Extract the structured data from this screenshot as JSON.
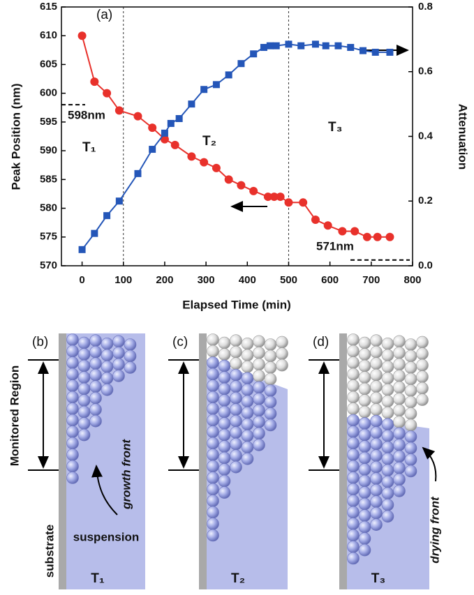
{
  "chart_data": {
    "type": "line",
    "xlabel": "Elapsed Time (min)",
    "ylabel": "Peak Position (nm)",
    "y2label": "Attenuation",
    "xlim": [
      -50,
      800
    ],
    "xticks": [
      0,
      100,
      200,
      300,
      400,
      500,
      600,
      700,
      800
    ],
    "ylim": [
      570,
      615
    ],
    "yticks": [
      570,
      575,
      580,
      585,
      590,
      595,
      600,
      605,
      610,
      615
    ],
    "y2lim": [
      0,
      0.8
    ],
    "y2ticks": [
      {
        "value": 0,
        "label": "0.0"
      },
      0.2,
      0.4,
      0.6,
      {
        "value": 0.8,
        "label": "0.8"
      }
    ],
    "series": [
      {
        "color": "#e8312b",
        "marker": "circle",
        "x": [
          0,
          30,
          60,
          90,
          135,
          170,
          200,
          225,
          265,
          295,
          325,
          355,
          385,
          415,
          450,
          465,
          480,
          500,
          535,
          565,
          595,
          630,
          660,
          690,
          715,
          745
        ],
        "values": [
          610,
          602,
          600,
          597,
          596,
          594,
          592,
          591,
          589,
          588,
          587,
          585,
          584,
          583,
          582,
          582,
          582,
          581,
          581,
          578,
          577,
          576,
          576,
          575,
          575,
          575
        ]
      },
      {
        "color": "#2456b8",
        "marker": "square",
        "axis": "y2",
        "x": [
          0,
          30,
          60,
          90,
          135,
          170,
          200,
          215,
          235,
          265,
          295,
          325,
          355,
          385,
          415,
          440,
          455,
          470,
          500,
          530,
          565,
          590,
          620,
          650,
          680,
          710,
          745
        ],
        "values": [
          0.05,
          0.1,
          0.155,
          0.2,
          0.285,
          0.36,
          0.41,
          0.44,
          0.455,
          0.5,
          0.545,
          0.56,
          0.59,
          0.625,
          0.655,
          0.675,
          0.68,
          0.68,
          0.685,
          0.68,
          0.685,
          0.68,
          0.68,
          0.675,
          0.665,
          0.66,
          0.66
        ]
      }
    ],
    "vlines": [
      100,
      500
    ],
    "reference_lines": [
      {
        "value": 598,
        "label": "598nm"
      },
      {
        "value": 571,
        "label": "571nm"
      }
    ],
    "panel_label": "(a)",
    "stages": [
      "T₁",
      "T₂",
      "T₃"
    ]
  },
  "diagram": {
    "panels": [
      {
        "label": "(b)",
        "stage": "T₁"
      },
      {
        "label": "(c)",
        "stage": "T₂"
      },
      {
        "label": "(d)",
        "stage": "T₃"
      }
    ],
    "monitored_region": "Monitored Region",
    "growth_front": "growth front",
    "suspension": "suspension",
    "substrate": "substrate",
    "drying_front": "drying front"
  }
}
